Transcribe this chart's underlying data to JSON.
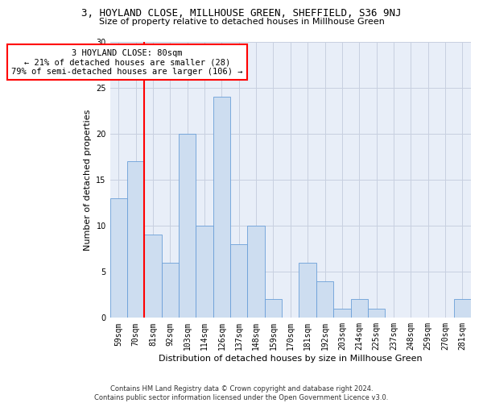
{
  "title1": "3, HOYLAND CLOSE, MILLHOUSE GREEN, SHEFFIELD, S36 9NJ",
  "title2": "Size of property relative to detached houses in Millhouse Green",
  "xlabel": "Distribution of detached houses by size in Millhouse Green",
  "ylabel": "Number of detached properties",
  "categories": [
    "59sqm",
    "70sqm",
    "81sqm",
    "92sqm",
    "103sqm",
    "114sqm",
    "126sqm",
    "137sqm",
    "148sqm",
    "159sqm",
    "170sqm",
    "181sqm",
    "192sqm",
    "203sqm",
    "214sqm",
    "225sqm",
    "237sqm",
    "248sqm",
    "259sqm",
    "270sqm",
    "281sqm"
  ],
  "values": [
    13,
    17,
    9,
    6,
    20,
    10,
    24,
    8,
    10,
    2,
    0,
    6,
    4,
    1,
    2,
    1,
    0,
    0,
    0,
    0,
    2
  ],
  "bar_color": "#cdddf0",
  "bar_edge_color": "#6a9fd8",
  "vline_x": 1.5,
  "annotation_text": "3 HOYLAND CLOSE: 80sqm\n← 21% of detached houses are smaller (28)\n79% of semi-detached houses are larger (106) →",
  "annotation_box_color": "white",
  "annotation_box_edge_color": "red",
  "vline_color": "red",
  "ylim": [
    0,
    30
  ],
  "yticks": [
    0,
    5,
    10,
    15,
    20,
    25,
    30
  ],
  "footer": "Contains HM Land Registry data © Crown copyright and database right 2024.\nContains public sector information licensed under the Open Government Licence v3.0.",
  "background_color": "#e8eef8",
  "plot_background": "white",
  "grid_color": "#c8d0e0",
  "title1_fontsize": 9,
  "title2_fontsize": 8,
  "ylabel_fontsize": 8,
  "xlabel_fontsize": 8,
  "tick_fontsize": 7,
  "footer_fontsize": 6,
  "annot_fontsize": 7.5
}
